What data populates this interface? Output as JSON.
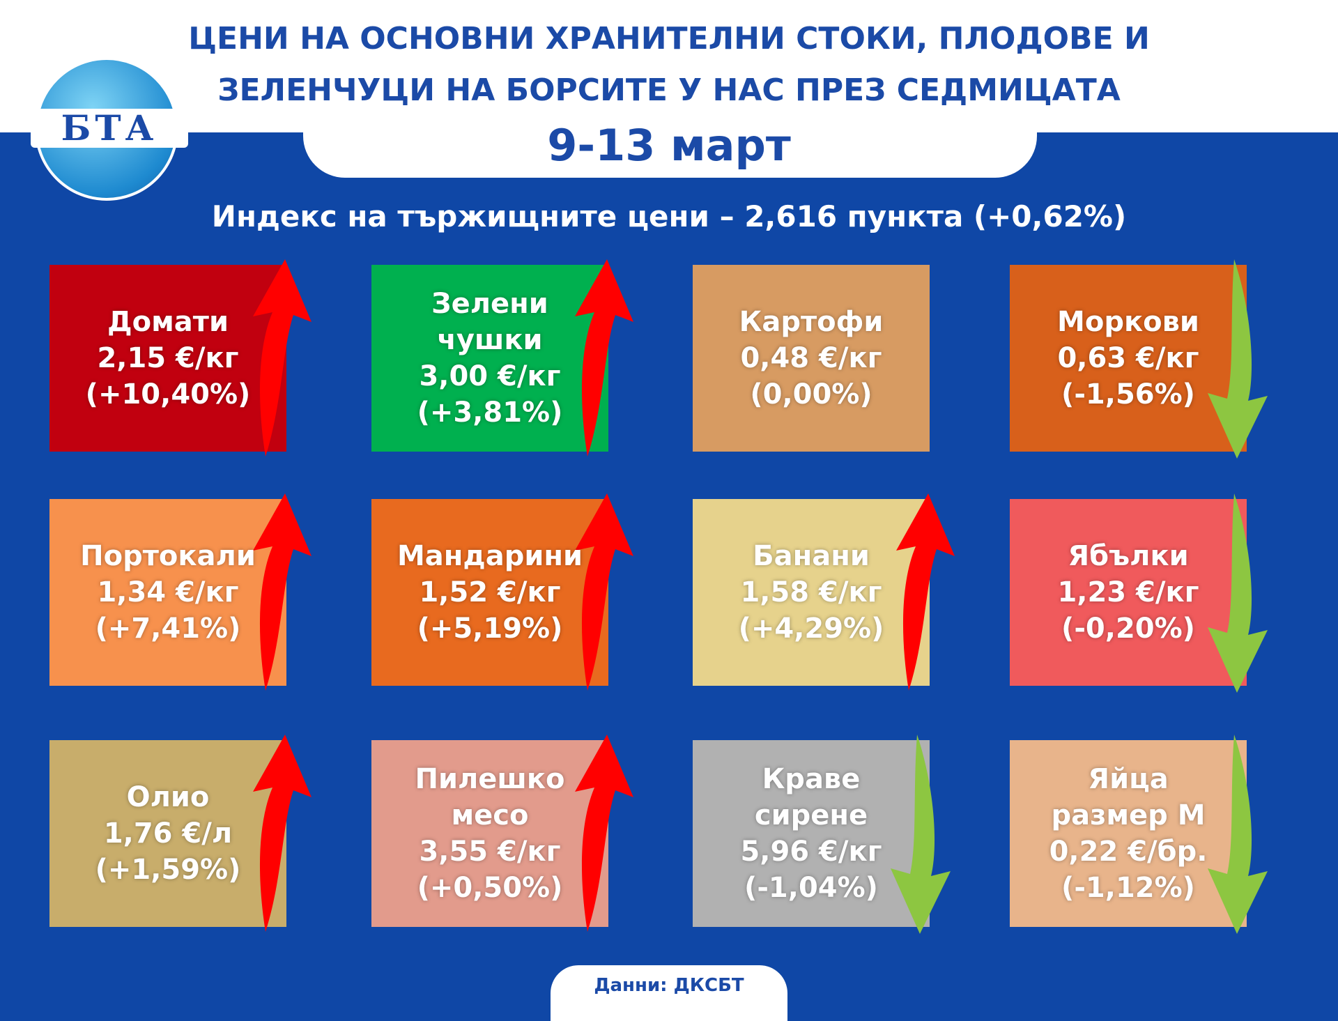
{
  "header": {
    "logo": "БТА",
    "title_lines": [
      "ЦЕНИ НА ОСНОВНИ ХРАНИТЕЛНИ СТОКИ, ПЛОДОВЕ И",
      "ЗЕЛЕНЧУЦИ НА БОРСИТЕ У НАС ПРЕЗ СЕДМИЦАТА"
    ],
    "date": "9-13 март"
  },
  "index": "Индекс на тържищните цени – 2,616 пункта (+0,62%)",
  "items": [
    {
      "name": [
        "Домати"
      ],
      "price": "2,15 €/кг",
      "change": "(+10,40%)",
      "color": "#c1000f",
      "arrow": "up"
    },
    {
      "name": [
        "Зелени",
        "чушки"
      ],
      "price": "3,00 €/кг",
      "change": "(+3,81%)",
      "color": "#00b04f",
      "arrow": "up"
    },
    {
      "name": [
        "Картофи"
      ],
      "price": "0,48 €/кг",
      "change": "(0,00%)",
      "color": "#d79b62",
      "arrow": "none"
    },
    {
      "name": [
        "Моркови"
      ],
      "price": "0,63 €/кг",
      "change": "(-1,56%)",
      "color": "#d8601b",
      "arrow": "down"
    },
    {
      "name": [
        "Портокали"
      ],
      "price": "1,34 €/кг",
      "change": "(+7,41%)",
      "color": "#f7914d",
      "arrow": "up"
    },
    {
      "name": [
        "Мандарини"
      ],
      "price": "1,52 €/кг",
      "change": "(+5,19%)",
      "color": "#e86a1f",
      "arrow": "up"
    },
    {
      "name": [
        "Банани"
      ],
      "price": "1,58 €/кг",
      "change": "(+4,29%)",
      "color": "#e6d28c",
      "arrow": "up"
    },
    {
      "name": [
        "Ябълки"
      ],
      "price": "1,23 €/кг",
      "change": "(-0,20%)",
      "color": "#f05a5c",
      "arrow": "down"
    },
    {
      "name": [
        "Олио"
      ],
      "price": "1,76 €/л",
      "change": "(+1,59%)",
      "color": "#c8ad6b",
      "arrow": "up"
    },
    {
      "name": [
        "Пилешко",
        "месо"
      ],
      "price": "3,55 €/кг",
      "change": "(+0,50%)",
      "color": "#e29b8c",
      "arrow": "up"
    },
    {
      "name": [
        "Краве",
        "сирене"
      ],
      "price": "5,96 €/кг",
      "change": "(-1,04%)",
      "color": "#b1b1b1",
      "arrow": "down"
    },
    {
      "name": [
        "Яйца",
        "размер М"
      ],
      "price": "0,22 €/бр.",
      "change": "(-1,12%)",
      "color": "#e8b48b",
      "arrow": "down"
    }
  ],
  "footer": "Данни: ДКСБТ"
}
